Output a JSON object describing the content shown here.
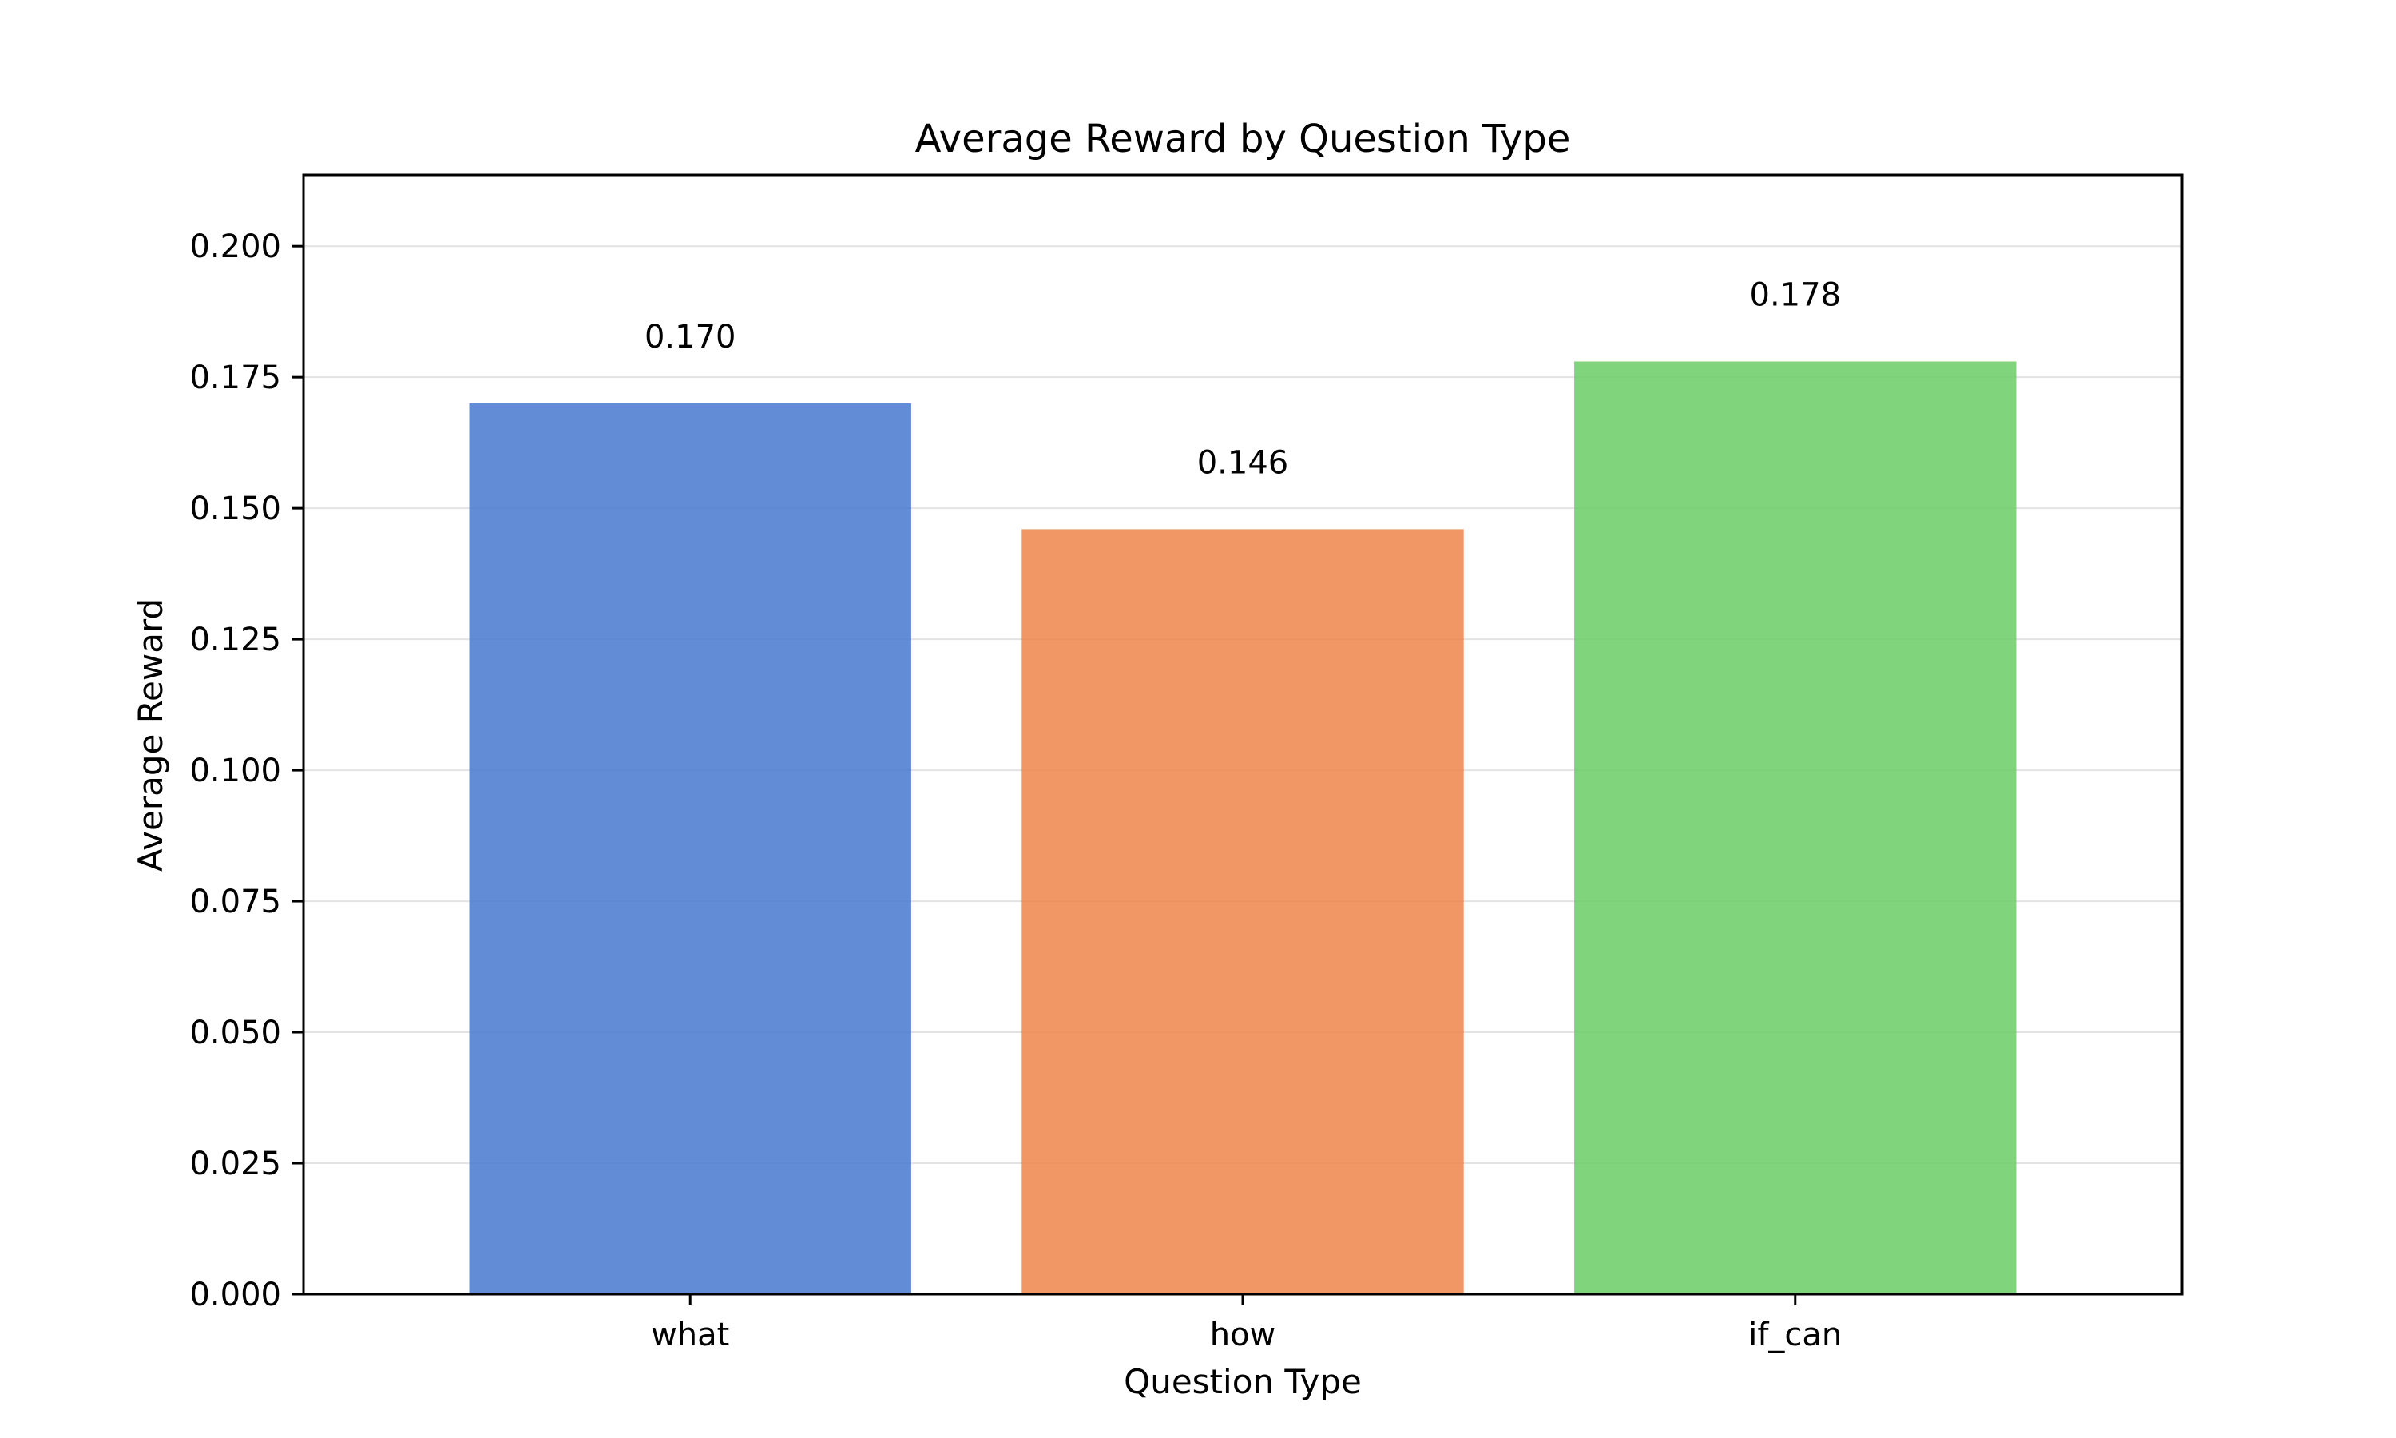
{
  "chart_data": {
    "type": "bar",
    "title": "Average Reward by Question Type",
    "xlabel": "Question Type",
    "ylabel": "Average Reward",
    "categories": [
      "what",
      "how",
      "if_can"
    ],
    "values": [
      0.17,
      0.146,
      0.178
    ],
    "value_labels": [
      "0.170",
      "0.146",
      "0.178"
    ],
    "colors": [
      "#4878cf",
      "#ee854a",
      "#6acc64"
    ],
    "ylim": [
      0,
      0.2136
    ],
    "yticks": [
      0.0,
      0.025,
      0.05,
      0.075,
      0.1,
      0.125,
      0.15,
      0.175,
      0.2
    ],
    "ytick_labels": [
      "0.000",
      "0.025",
      "0.050",
      "0.075",
      "0.100",
      "0.125",
      "0.150",
      "0.175",
      "0.200"
    ],
    "grid": true,
    "legend": "none"
  }
}
